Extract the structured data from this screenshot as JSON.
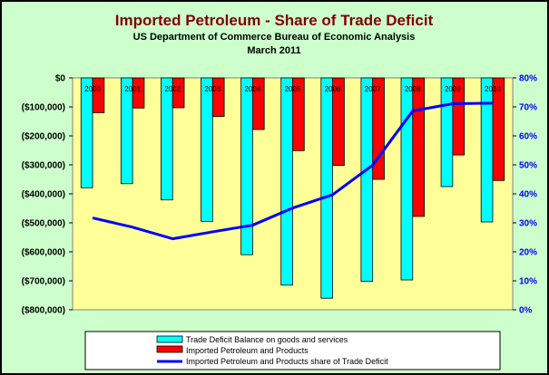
{
  "chart_data": {
    "type": "bar",
    "title": "Imported Petroleum - Share of Trade Deficit",
    "subtitle": "US Department of Commerce Bureau of Economic Analysis",
    "date_line": "March 2011",
    "categories": [
      "2000",
      "2001",
      "2002",
      "2003",
      "2004",
      "2005",
      "2006",
      "2007",
      "2008",
      "2009",
      "2010"
    ],
    "y_left": {
      "ylim": [
        -800000,
        0
      ],
      "ticks": [
        0,
        -100000,
        -200000,
        -300000,
        -400000,
        -500000,
        -600000,
        -700000,
        -800000
      ],
      "tick_labels": [
        "$0",
        "($100,000)",
        "($200,000)",
        "($300,000)",
        "($400,000)",
        "($500,000)",
        "($600,000)",
        "($700,000)",
        "($800,000)"
      ]
    },
    "y_right": {
      "ylim": [
        0,
        80
      ],
      "ticks": [
        80,
        70,
        60,
        50,
        40,
        30,
        20,
        10,
        0
      ],
      "tick_labels": [
        "80%",
        "70%",
        "60%",
        "50%",
        "40%",
        "30%",
        "20%",
        "10%",
        "0%"
      ]
    },
    "series": [
      {
        "name": "Trade Deficit Balance on goods and services",
        "type": "bar",
        "color": "#00ffff",
        "values": [
          -379000,
          -365000,
          -421000,
          -495000,
          -610000,
          -715000,
          -760000,
          -702000,
          -697000,
          -375000,
          -497000
        ]
      },
      {
        "name": "Imported Petroleum and Products",
        "type": "bar",
        "color": "#ff0000",
        "values": [
          -120000,
          -104000,
          -103000,
          -133000,
          -178000,
          -251000,
          -302000,
          -350000,
          -478000,
          -266000,
          -354000
        ]
      },
      {
        "name": "Imported Petroleum and Products share of Trade Deficit",
        "type": "line",
        "axis": "right",
        "color": "#0000ff",
        "values": [
          31.7,
          28.5,
          24.5,
          26.9,
          29.2,
          35.1,
          39.7,
          49.9,
          68.6,
          71.1,
          71.3
        ]
      }
    ],
    "plot_background": "#ffff99",
    "legend_position": "bottom"
  }
}
